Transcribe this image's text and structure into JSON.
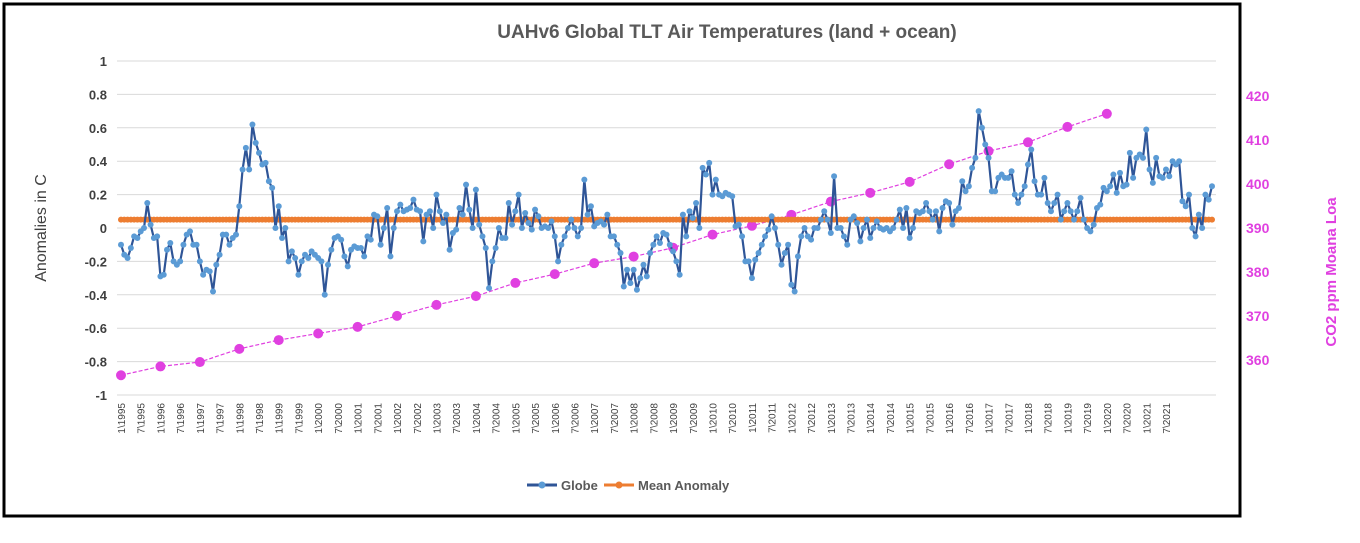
{
  "chart_data": {
    "type": "line",
    "title": "UAHv6 Global TLT Air Temperatures (land + ocean)",
    "ylabel": "Anomalies in C",
    "y2label": "CO2 ppm Moana Loa",
    "ylim": [
      -1,
      1
    ],
    "y2lim": [
      352,
      428
    ],
    "yticks": [
      -1,
      -0.8,
      -0.6,
      -0.4,
      -0.2,
      0,
      0.2,
      0.4,
      0.6,
      0.8,
      1
    ],
    "y2ticks": [
      360,
      370,
      380,
      390,
      400,
      410,
      420
    ],
    "xticks": [
      "1\\1995",
      "7\\1995",
      "1\\1996",
      "7\\1996",
      "1\\1997",
      "7\\1997",
      "1\\1998",
      "7\\1998",
      "1\\1999",
      "7\\1999",
      "1\\2000",
      "7\\2000",
      "1\\2001",
      "7\\2001",
      "1\\2002",
      "7\\2002",
      "1\\2003",
      "7\\2003",
      "1\\2004",
      "7\\2004",
      "1\\2005",
      "7\\2005",
      "1\\2006",
      "7\\2006",
      "1\\2007",
      "7\\2007",
      "1\\2008",
      "7\\2008",
      "1\\2009",
      "7\\2009",
      "1\\2010",
      "7\\2010",
      "1\\2011",
      "7\\2011",
      "1\\2012",
      "7\\2012",
      "1\\2013",
      "7\\2013",
      "1\\2014",
      "7\\2014",
      "1\\2015",
      "7\\2015",
      "1\\2016",
      "7\\2016",
      "1\\2017",
      "7\\2017",
      "1\\2018",
      "7\\2018",
      "1\\2019",
      "7\\2019",
      "1\\2020",
      "7\\2020",
      "1\\2021",
      "7\\2021"
    ],
    "grid": true,
    "legend_position": "bottom",
    "series": [
      {
        "name": "Globe",
        "color": "#2f5597",
        "marker_color": "#5b9bd5",
        "monthly_from": "1\\1995",
        "values": [
          -0.1,
          -0.16,
          -0.18,
          -0.12,
          -0.05,
          -0.06,
          -0.02,
          0.0,
          0.15,
          0.02,
          -0.06,
          -0.05,
          -0.29,
          -0.28,
          -0.13,
          -0.09,
          -0.2,
          -0.22,
          -0.2,
          -0.1,
          -0.04,
          -0.02,
          -0.1,
          -0.1,
          -0.2,
          -0.28,
          -0.25,
          -0.26,
          -0.38,
          -0.22,
          -0.16,
          -0.04,
          -0.04,
          -0.1,
          -0.06,
          -0.04,
          0.13,
          0.35,
          0.48,
          0.35,
          0.62,
          0.51,
          0.45,
          0.38,
          0.39,
          0.28,
          0.24,
          0.0,
          0.13,
          -0.06,
          0.0,
          -0.2,
          -0.14,
          -0.18,
          -0.28,
          -0.2,
          -0.16,
          -0.18,
          -0.14,
          -0.16,
          -0.18,
          -0.2,
          -0.4,
          -0.22,
          -0.13,
          -0.06,
          -0.05,
          -0.07,
          -0.17,
          -0.23,
          -0.13,
          -0.11,
          -0.12,
          -0.12,
          -0.17,
          -0.05,
          -0.07,
          0.08,
          0.07,
          -0.1,
          0.0,
          0.12,
          -0.17,
          0.0,
          0.1,
          0.14,
          0.1,
          0.11,
          0.12,
          0.17,
          0.11,
          0.1,
          -0.08,
          0.08,
          0.1,
          0.0,
          0.2,
          0.1,
          0.03,
          0.08,
          -0.13,
          -0.03,
          -0.01,
          0.12,
          0.08,
          0.26,
          0.11,
          0.0,
          0.23,
          0.02,
          -0.05,
          -0.12,
          -0.36,
          -0.2,
          -0.12,
          0.0,
          -0.06,
          -0.06,
          0.15,
          0.02,
          0.1,
          0.2,
          0.0,
          0.09,
          0.03,
          -0.01,
          0.11,
          0.07,
          0.0,
          0.01,
          0.0,
          0.04,
          -0.05,
          -0.2,
          -0.1,
          -0.05,
          0.0,
          0.05,
          0.0,
          -0.05,
          0.0,
          0.29,
          0.08,
          0.13,
          0.01,
          0.03,
          0.04,
          0.02,
          0.08,
          -0.05,
          -0.05,
          -0.1,
          -0.15,
          -0.35,
          -0.25,
          -0.33,
          -0.25,
          -0.37,
          -0.3,
          -0.22,
          -0.29,
          -0.15,
          -0.1,
          -0.05,
          -0.09,
          -0.03,
          -0.04,
          -0.1,
          -0.14,
          -0.2,
          -0.28,
          0.08,
          -0.05,
          0.1,
          0.06,
          0.15,
          0.0,
          0.36,
          0.32,
          0.39,
          0.2,
          0.29,
          0.2,
          0.19,
          0.21,
          0.2,
          0.19,
          0.01,
          0.02,
          -0.05,
          -0.2,
          -0.2,
          -0.3,
          -0.19,
          -0.15,
          -0.1,
          -0.05,
          -0.01,
          0.07,
          0.0,
          -0.1,
          -0.22,
          -0.15,
          -0.1,
          -0.34,
          -0.38,
          -0.17,
          -0.05,
          0.0,
          -0.05,
          -0.07,
          0.0,
          0.0,
          0.05,
          0.1,
          0.05,
          -0.03,
          0.31,
          0.0,
          0.0,
          -0.05,
          -0.1,
          0.05,
          0.07,
          0.03,
          -0.08,
          0.0,
          0.05,
          -0.06,
          0.0,
          0.04,
          0.0,
          -0.01,
          0.0,
          -0.02,
          0.0,
          0.05,
          0.11,
          0.0,
          0.12,
          -0.06,
          0.0,
          0.1,
          0.09,
          0.1,
          0.15,
          0.1,
          0.05,
          0.1,
          -0.02,
          0.12,
          0.16,
          0.15,
          0.02,
          0.1,
          0.12,
          0.28,
          0.22,
          0.25,
          0.36,
          0.42,
          0.7,
          0.6,
          0.5,
          0.42,
          0.22,
          0.22,
          0.3,
          0.32,
          0.3,
          0.3,
          0.34,
          0.2,
          0.15,
          0.2,
          0.25,
          0.38,
          0.47,
          0.28,
          0.2,
          0.2,
          0.3,
          0.15,
          0.1,
          0.15,
          0.2,
          0.05,
          0.1,
          0.15,
          0.1,
          0.05,
          0.1,
          0.18,
          0.05,
          0.0,
          -0.02,
          0.02,
          0.12,
          0.14,
          0.24,
          0.22,
          0.25,
          0.32,
          0.21,
          0.33,
          0.25,
          0.26,
          0.45,
          0.3,
          0.42,
          0.44,
          0.42,
          0.59,
          0.35,
          0.27,
          0.42,
          0.31,
          0.3,
          0.35,
          0.31,
          0.4,
          0.38,
          0.4,
          0.16,
          0.13,
          0.2,
          0.0,
          -0.05,
          0.08,
          0.0,
          0.2,
          0.17,
          0.25
        ]
      },
      {
        "name": "Mean Anomaly",
        "color": "#ed7d31",
        "constant": 0.05
      },
      {
        "color": "#e040e0",
        "axis": "y2",
        "points": [
          {
            "x": "1\\1995",
            "y": 356.5
          },
          {
            "x": "1\\1996",
            "y": 358.5
          },
          {
            "x": "1\\1997",
            "y": 359.5
          },
          {
            "x": "1\\1998",
            "y": 362.5
          },
          {
            "x": "1\\1999",
            "y": 364.5
          },
          {
            "x": "1\\2000",
            "y": 366
          },
          {
            "x": "1\\2001",
            "y": 367.5
          },
          {
            "x": "1\\2002",
            "y": 370
          },
          {
            "x": "1\\2003",
            "y": 372.5
          },
          {
            "x": "1\\2004",
            "y": 374.5
          },
          {
            "x": "1\\2005",
            "y": 377.5
          },
          {
            "x": "1\\2006",
            "y": 379.5
          },
          {
            "x": "1\\2007",
            "y": 382
          },
          {
            "x": "1\\2008",
            "y": 383.5
          },
          {
            "x": "1\\2009",
            "y": 385.5
          },
          {
            "x": "1\\2010",
            "y": 388.5
          },
          {
            "x": "1\\2011",
            "y": 390.5
          },
          {
            "x": "1\\2012",
            "y": 393
          },
          {
            "x": "1\\2013",
            "y": 396
          },
          {
            "x": "1\\2014",
            "y": 398
          },
          {
            "x": "1\\2015",
            "y": 400.5
          },
          {
            "x": "1\\2016",
            "y": 404.5
          },
          {
            "x": "1\\2017",
            "y": 407.5
          },
          {
            "x": "1\\2018",
            "y": 409.5
          },
          {
            "x": "1\\2019",
            "y": 413
          },
          {
            "x": "1\\2020",
            "y": 416
          }
        ]
      }
    ]
  }
}
